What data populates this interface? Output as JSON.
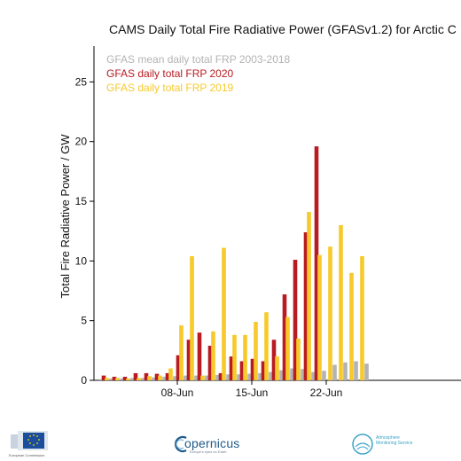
{
  "chart_data": {
    "type": "bar",
    "title": "CAMS Daily Total Fire Radiative Power (GFASv1.2) for Arctic C",
    "ylabel": "Total Fire Radiative Power / GW",
    "xlabel": "",
    "ylim": [
      0,
      28
    ],
    "yticks": [
      0,
      5,
      10,
      15,
      20,
      25
    ],
    "xticks": [
      {
        "label": "08-Jun",
        "day": 8
      },
      {
        "label": "15-Jun",
        "day": 15
      },
      {
        "label": "22-Jun",
        "day": 22
      }
    ],
    "x": [
      1,
      2,
      3,
      4,
      5,
      6,
      7,
      8,
      9,
      10,
      11,
      12,
      13,
      14,
      15,
      16,
      17,
      18,
      19,
      20,
      21,
      22,
      23,
      24,
      25,
      26
    ],
    "series": [
      {
        "name": "GFAS mean daily total FRP 2003-2018",
        "color": "#b3b3b3",
        "values": [
          0.1,
          0.15,
          0.15,
          0.2,
          0.2,
          0.25,
          0.3,
          0.35,
          0.4,
          0.4,
          0.4,
          0.45,
          0.5,
          0.5,
          0.55,
          0.6,
          0.7,
          0.85,
          1.0,
          0.95,
          0.7,
          0.8,
          1.3,
          1.5,
          1.6,
          1.4
        ]
      },
      {
        "name": "GFAS daily total FRP 2020",
        "color": "#b81c22",
        "values": [
          0.4,
          0.3,
          0.3,
          0.6,
          0.6,
          0.55,
          0.6,
          2.1,
          3.4,
          4.0,
          2.9,
          0.6,
          2.0,
          1.6,
          1.8,
          1.6,
          3.4,
          7.2,
          10.1,
          12.4,
          19.6,
          null,
          null,
          null,
          null,
          null
        ]
      },
      {
        "name": "GFAS daily total FRP 2019",
        "color": "#f7c92a",
        "values": [
          0.2,
          0.2,
          0.15,
          0.2,
          0.35,
          0.4,
          1.0,
          4.6,
          10.4,
          0.4,
          4.1,
          11.1,
          3.8,
          3.8,
          4.9,
          5.7,
          2.0,
          5.3,
          3.5,
          14.1,
          10.5,
          11.2,
          13.0,
          9.0,
          10.4,
          null
        ]
      }
    ]
  },
  "footer": {
    "eu_text": "European Commission",
    "copernicus_name": "opernicus",
    "copernicus_tagline": "Europe's eyes on Earth",
    "cams_text_line1": "Atmosphere",
    "cams_text_line2": "Monitoring Service"
  }
}
